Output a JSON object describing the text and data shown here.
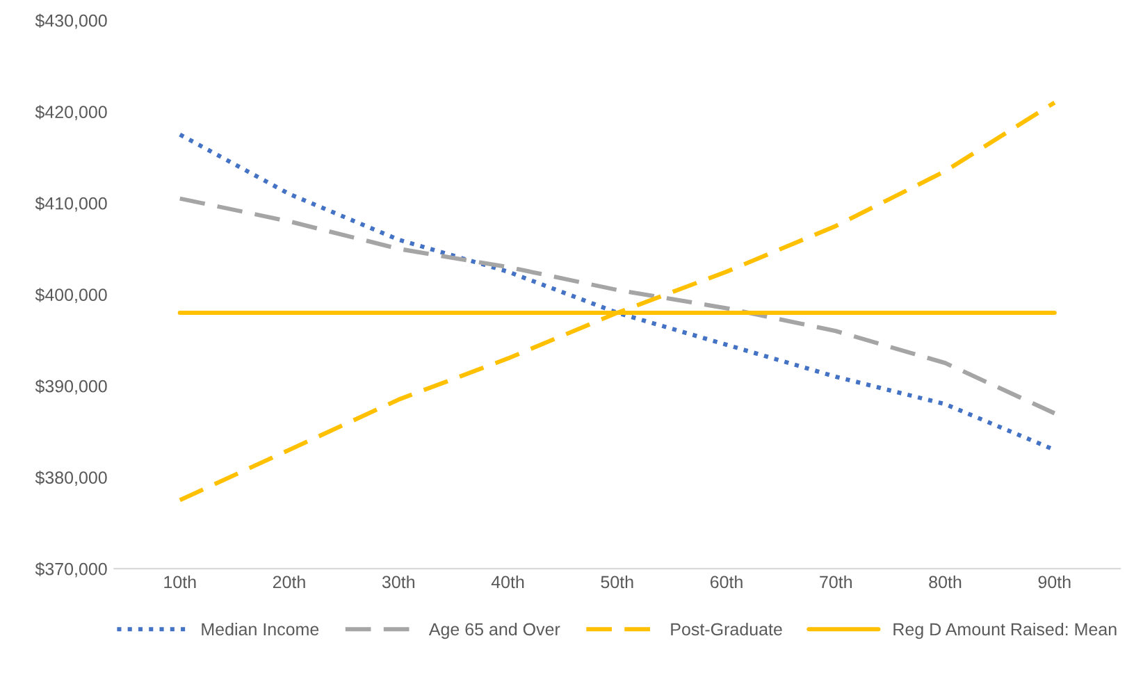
{
  "chart_data": {
    "type": "line",
    "categories": [
      "10th",
      "20th",
      "30th",
      "40th",
      "50th",
      "60th",
      "70th",
      "80th",
      "90th"
    ],
    "series": [
      {
        "name": "Median Income",
        "color": "#4472c4",
        "line_style": "dotted",
        "values": [
          417500,
          411000,
          406000,
          402500,
          398000,
          394500,
          391000,
          388000,
          383000
        ]
      },
      {
        "name": "Age 65 and Over",
        "color": "#a5a5a5",
        "line_style": "dashed",
        "values": [
          410500,
          408000,
          405000,
          403000,
          400500,
          398500,
          396000,
          392500,
          387000
        ]
      },
      {
        "name": "Post-Graduate",
        "color": "#ffc000",
        "line_style": "dashed",
        "values": [
          377500,
          383000,
          388500,
          393000,
          398000,
          402500,
          407500,
          413500,
          421000
        ]
      },
      {
        "name": "Reg D Amount Raised: Mean",
        "color": "#ffc000",
        "line_style": "solid",
        "values": [
          398000,
          398000,
          398000,
          398000,
          398000,
          398000,
          398000,
          398000,
          398000
        ]
      }
    ],
    "ylim": [
      370000,
      430000
    ],
    "yticks": [
      {
        "value": 370000,
        "label": "$370,000"
      },
      {
        "value": 380000,
        "label": "$380,000"
      },
      {
        "value": 390000,
        "label": "$390,000"
      },
      {
        "value": 400000,
        "label": "$400,000"
      },
      {
        "value": 410000,
        "label": "$410,000"
      },
      {
        "value": 420000,
        "label": "$420,000"
      },
      {
        "value": 430000,
        "label": "$430,000"
      }
    ],
    "grid": false,
    "legend": "bottom",
    "marker": "none"
  }
}
